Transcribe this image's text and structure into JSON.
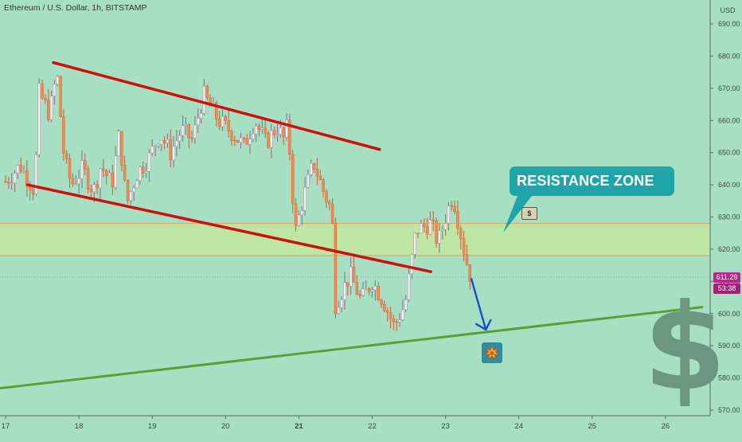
{
  "header": {
    "title": "Ethereum / U.S. Dollar, 1h, BITSTAMP"
  },
  "price_axis": {
    "currency": "USD",
    "current_price": "611.29",
    "countdown": "53:38"
  },
  "callout": {
    "label": "RESISTANCE ZONE",
    "icon": "money-icon"
  },
  "annotations": {
    "dollar_symbol": "$",
    "explosion_icon": "collision-icon"
  },
  "colors": {
    "background": "#a6dfc2",
    "up_candle": "#f1f0ec",
    "down_candle": "#ef8a52",
    "channel_line": "#cc1111",
    "support_line": "#5aa035",
    "resistance_zone": "#bde6a4",
    "arrow": "#1e4fd0",
    "callout": "#1fa5a9",
    "price_tag": "#b4288c"
  },
  "chart_data": {
    "type": "candlestick",
    "x_axis": {
      "ticks": [
        "17",
        "18",
        "19",
        "20",
        "21",
        "22",
        "23",
        "24",
        "25",
        "26"
      ]
    },
    "y_axis": {
      "label": "USD",
      "range": [
        567,
        694
      ],
      "ticks": [
        570,
        580,
        590,
        600,
        610,
        620,
        630,
        640,
        650,
        660,
        670,
        680,
        690
      ],
      "tick_labels": [
        "570.00",
        "580.00",
        "590.00",
        "600.00",
        "610.00",
        "620.00",
        "630.00",
        "640.00",
        "650.00",
        "660.00",
        "670.00",
        "680.00",
        "690.00"
      ]
    },
    "x_range_days": [
      17,
      27
    ],
    "resistance_zone": [
      618,
      628
    ],
    "last_price": 611.29,
    "trendlines": [
      {
        "name": "channel-top",
        "points": [
          [
            17.65,
            678
          ],
          [
            22.1,
            651
          ]
        ]
      },
      {
        "name": "channel-bottom",
        "points": [
          [
            17.3,
            640
          ],
          [
            22.8,
            613
          ]
        ]
      },
      {
        "name": "support",
        "points": [
          [
            17.0,
            577
          ],
          [
            26.5,
            602
          ]
        ]
      }
    ],
    "projection_arrow": {
      "from": [
        23.35,
        611
      ],
      "to": [
        23.55,
        595
      ]
    },
    "price_path": [
      [
        17.0,
        641
      ],
      [
        17.2,
        646
      ],
      [
        17.4,
        638
      ],
      [
        17.45,
        669
      ],
      [
        17.6,
        662
      ],
      [
        17.7,
        675
      ],
      [
        17.8,
        648
      ],
      [
        17.9,
        640
      ],
      [
        18.05,
        645
      ],
      [
        18.2,
        638
      ],
      [
        18.3,
        646
      ],
      [
        18.45,
        640
      ],
      [
        18.55,
        656
      ],
      [
        18.65,
        634
      ],
      [
        18.8,
        644
      ],
      [
        18.95,
        648
      ],
      [
        19.1,
        656
      ],
      [
        19.25,
        650
      ],
      [
        19.4,
        657
      ],
      [
        19.55,
        654
      ],
      [
        19.7,
        668
      ],
      [
        19.8,
        664
      ],
      [
        19.9,
        660
      ],
      [
        20.1,
        656
      ],
      [
        20.25,
        652
      ],
      [
        20.4,
        660
      ],
      [
        20.55,
        653
      ],
      [
        20.7,
        658
      ],
      [
        20.8,
        654
      ],
      [
        20.85,
        659
      ],
      [
        20.95,
        625
      ],
      [
        21.05,
        635
      ],
      [
        21.2,
        647
      ],
      [
        21.35,
        637
      ],
      [
        21.45,
        632
      ],
      [
        21.5,
        603
      ],
      [
        21.7,
        612
      ],
      [
        21.85,
        604
      ],
      [
        22.0,
        610
      ],
      [
        22.15,
        604
      ],
      [
        22.3,
        596
      ],
      [
        22.45,
        603
      ],
      [
        22.6,
        626
      ],
      [
        22.8,
        628
      ],
      [
        22.9,
        622
      ],
      [
        23.0,
        630
      ],
      [
        23.1,
        637
      ],
      [
        23.25,
        620
      ],
      [
        23.32,
        613
      ],
      [
        23.35,
        611
      ]
    ]
  }
}
